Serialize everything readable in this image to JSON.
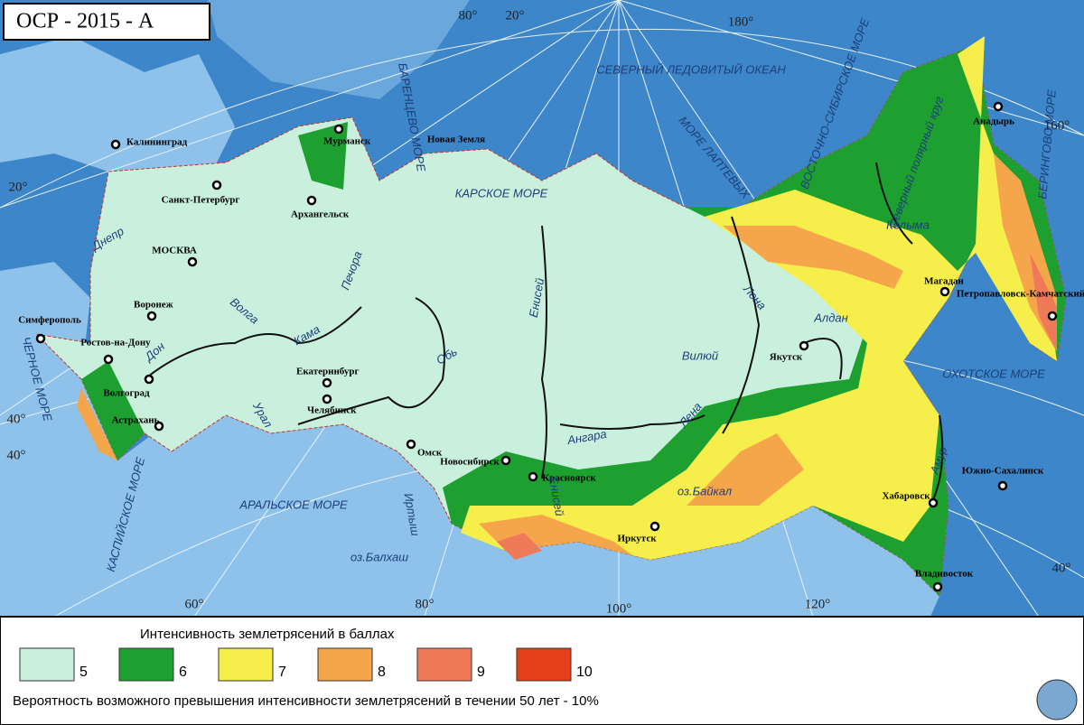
{
  "title": "ОСР - 2015 - А",
  "cities": [
    "Калининград",
    "Мурманск",
    "Санкт-Петербург",
    "Архангельск",
    "МОСКВА",
    "Воронеж",
    "Симферополь",
    "Ростов-на-Дону",
    "Волгоград",
    "Астрахань",
    "Екатеринбург",
    "Челябинск",
    "Омск",
    "Новосибирск",
    "Красноярск",
    "Иркутск",
    "Якутск",
    "Магадан",
    "Анадырь",
    "Петропавловск-Камчатский",
    "Южно-Сахалинск",
    "Хабаровск",
    "Владивосток"
  ],
  "islands": [
    "Новая Земля"
  ],
  "water": [
    "СЕВЕРНЫЙ ЛЕДОВИТЫЙ ОКЕАН",
    "БАРЕНЦЕВО МОРЕ",
    "КАРСКОЕ МОРЕ",
    "МОРЕ ЛАПТЕВЫХ",
    "ВОСТОЧНО-СИБИРСКОЕ МОРЕ",
    "БЕРИНГОВО МОРЕ",
    "ОХОТСКОЕ МОРЕ",
    "ЧЕРНОЕ МОРЕ",
    "КАСПИЙСКОЕ МОРЕ",
    "АРАЛЬСКОЕ МОРЕ",
    "оз.Байкал",
    "оз.Балхаш"
  ],
  "rivers": [
    "Днепр",
    "Волга",
    "Дон",
    "Кама",
    "Печора",
    "Урал",
    "Обь",
    "Енисей",
    "Енисей",
    "Иртыш",
    "Ангара",
    "Вилюй",
    "Лена",
    "Лена",
    "Алдан",
    "Колыма",
    "Амур"
  ],
  "polar_circle": "Северный полярный круг",
  "coordinates": [
    "80°",
    "20°",
    "180°",
    "20°",
    "160°",
    "40°",
    "40°",
    "40°",
    "60°",
    "80°",
    "100°",
    "120°"
  ],
  "legend": {
    "title": "Интенсивность землетрясений в баллах",
    "items": [
      {
        "value": 5,
        "color": "#c9f0dd"
      },
      {
        "value": 6,
        "color": "#1ea030"
      },
      {
        "value": 7,
        "color": "#f6ee4a"
      },
      {
        "value": 8,
        "color": "#f6a64a"
      },
      {
        "value": 9,
        "color": "#ef7a5a"
      },
      {
        "value": 10,
        "color": "#e3401a"
      }
    ]
  },
  "note": "Вероятность возможного превышения интенсивности землетрясений в течении 50 лет - 10%"
}
